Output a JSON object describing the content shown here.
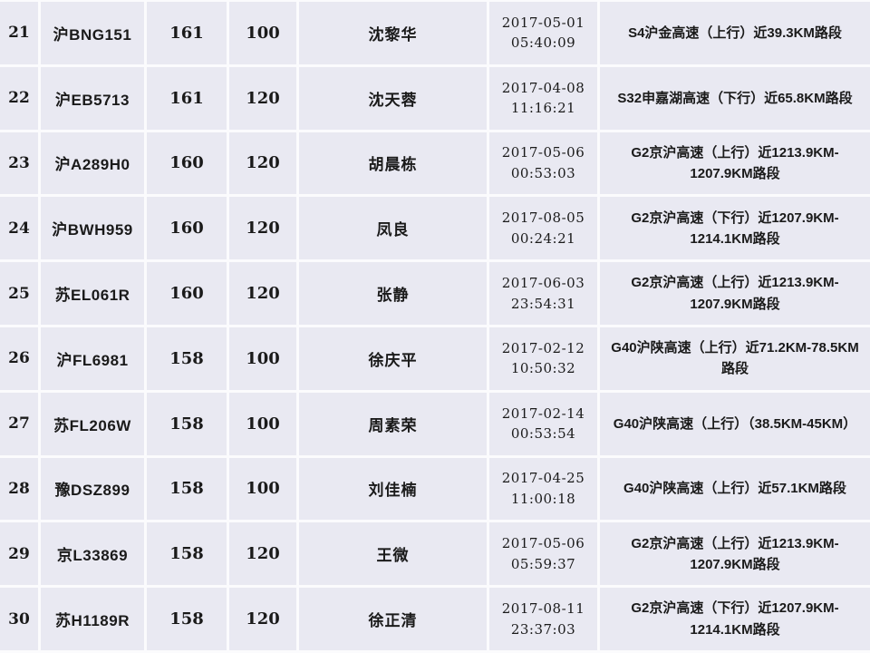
{
  "table": {
    "description": "speeding-violation-records",
    "colors": {
      "cell_background": "#e9e9f2",
      "grid_line": "#fbfbfd",
      "text": "#1a1a1a"
    },
    "columns": [
      "rank",
      "plate",
      "speed",
      "speed_limit",
      "driver",
      "datetime",
      "location"
    ],
    "rows": [
      {
        "rank": "21",
        "plate": "沪BNG151",
        "speed": "161",
        "limit": "100",
        "driver": "沈黎华",
        "date": "2017-05-01",
        "time": "05:40:09",
        "location": "S4沪金高速（上行）近39.3KM路段"
      },
      {
        "rank": "22",
        "plate": "沪EB5713",
        "speed": "161",
        "limit": "120",
        "driver": "沈天蓉",
        "date": "2017-04-08",
        "time": "11:16:21",
        "location": "S32申嘉湖高速（下行）近65.8KM路段"
      },
      {
        "rank": "23",
        "plate": "沪A289H0",
        "speed": "160",
        "limit": "120",
        "driver": "胡晨栋",
        "date": "2017-05-06",
        "time": "00:53:03",
        "location": "G2京沪高速（上行）近1213.9KM-1207.9KM路段"
      },
      {
        "rank": "24",
        "plate": "沪BWH959",
        "speed": "160",
        "limit": "120",
        "driver": "凤良",
        "date": "2017-08-05",
        "time": "00:24:21",
        "location": "G2京沪高速（下行）近1207.9KM-1214.1KM路段"
      },
      {
        "rank": "25",
        "plate": "苏EL061R",
        "speed": "160",
        "limit": "120",
        "driver": "张静",
        "date": "2017-06-03",
        "time": "23:54:31",
        "location": "G2京沪高速（上行）近1213.9KM-1207.9KM路段"
      },
      {
        "rank": "26",
        "plate": "沪FL6981",
        "speed": "158",
        "limit": "100",
        "driver": "徐庆平",
        "date": "2017-02-12",
        "time": "10:50:32",
        "location": "G40沪陕高速（上行）近71.2KM-78.5KM路段"
      },
      {
        "rank": "27",
        "plate": "苏FL206W",
        "speed": "158",
        "limit": "100",
        "driver": "周素荣",
        "date": "2017-02-14",
        "time": "00:53:54",
        "location": "G40沪陕高速（上行）（38.5KM-45KM）"
      },
      {
        "rank": "28",
        "plate": "豫DSZ899",
        "speed": "158",
        "limit": "100",
        "driver": "刘佳楠",
        "date": "2017-04-25",
        "time": "11:00:18",
        "location": "G40沪陕高速（上行）近57.1KM路段"
      },
      {
        "rank": "29",
        "plate": "京L33869",
        "speed": "158",
        "limit": "120",
        "driver": "王微",
        "date": "2017-05-06",
        "time": "05:59:37",
        "location": "G2京沪高速（上行）近1213.9KM-1207.9KM路段"
      },
      {
        "rank": "30",
        "plate": "苏H1189R",
        "speed": "158",
        "limit": "120",
        "driver": "徐正清",
        "date": "2017-08-11",
        "time": "23:37:03",
        "location": "G2京沪高速（下行）近1207.9KM-1214.1KM路段"
      }
    ]
  }
}
